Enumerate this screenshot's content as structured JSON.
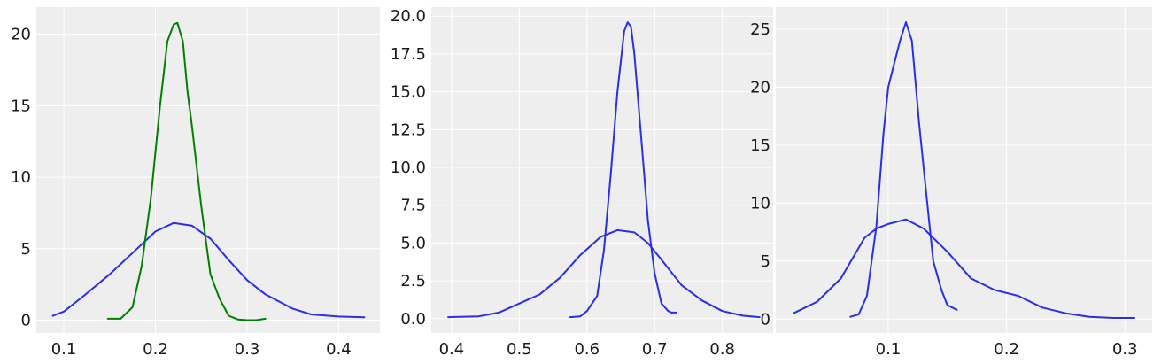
{
  "chart_data": [
    {
      "type": "line",
      "title": "",
      "xlabel": "",
      "ylabel": "",
      "xlim": [
        0.07,
        0.445
      ],
      "ylim": [
        -0.9,
        21.9
      ],
      "xticks": [
        0.1,
        0.2,
        0.3,
        0.4
      ],
      "xtick_labels": [
        "0.1",
        "0.2",
        "0.3",
        "0.4"
      ],
      "yticks": [
        0,
        5,
        10,
        15,
        20
      ],
      "ytick_labels": [
        "0",
        "5",
        "10",
        "15",
        "20"
      ],
      "grid": true,
      "series": [
        {
          "color": "#2a2eec",
          "x": [
            0.088,
            0.1,
            0.12,
            0.15,
            0.18,
            0.2,
            0.22,
            0.24,
            0.26,
            0.28,
            0.3,
            0.32,
            0.35,
            0.37,
            0.4,
            0.428
          ],
          "y": [
            0.3,
            0.6,
            1.6,
            3.2,
            5.0,
            6.2,
            6.8,
            6.6,
            5.7,
            4.2,
            2.8,
            1.8,
            0.8,
            0.4,
            0.25,
            0.2
          ]
        },
        {
          "color": "#008000",
          "x": [
            0.148,
            0.162,
            0.175,
            0.185,
            0.195,
            0.205,
            0.213,
            0.22,
            0.224,
            0.23,
            0.235,
            0.24,
            0.25,
            0.26,
            0.27,
            0.28,
            0.29,
            0.3,
            0.31,
            0.32
          ],
          "y": [
            0.1,
            0.1,
            0.9,
            3.8,
            8.5,
            15.0,
            19.5,
            20.7,
            20.8,
            19.5,
            16.0,
            13.5,
            8.0,
            3.2,
            1.5,
            0.3,
            0.05,
            0.0,
            0.0,
            0.1
          ]
        }
      ]
    },
    {
      "type": "line",
      "title": "",
      "xlabel": "",
      "ylabel": "",
      "xlim": [
        0.37,
        0.875
      ],
      "ylim": [
        -0.95,
        20.6
      ],
      "xticks": [
        0.4,
        0.5,
        0.6,
        0.7,
        0.8
      ],
      "xtick_labels": [
        "0.4",
        "0.5",
        "0.6",
        "0.7",
        "0.8"
      ],
      "yticks": [
        0.0,
        2.5,
        5.0,
        7.5,
        10.0,
        12.5,
        15.0,
        17.5,
        20.0
      ],
      "ytick_labels": [
        "0.0",
        "2.5",
        "5.0",
        "7.5",
        "10.0",
        "12.5",
        "15.0",
        "17.5",
        "20.0"
      ],
      "grid": true,
      "series": [
        {
          "color": "#2a2eec",
          "x": [
            0.395,
            0.44,
            0.47,
            0.5,
            0.53,
            0.56,
            0.59,
            0.62,
            0.645,
            0.67,
            0.69,
            0.71,
            0.74,
            0.77,
            0.8,
            0.83,
            0.855
          ],
          "y": [
            0.1,
            0.15,
            0.4,
            1.0,
            1.6,
            2.7,
            4.2,
            5.4,
            5.85,
            5.7,
            5.0,
            3.9,
            2.2,
            1.2,
            0.5,
            0.2,
            0.1
          ]
        },
        {
          "color": "#2a2eec",
          "x": [
            0.575,
            0.59,
            0.6,
            0.615,
            0.625,
            0.635,
            0.645,
            0.655,
            0.66,
            0.665,
            0.67,
            0.68,
            0.69,
            0.7,
            0.71,
            0.72,
            0.725,
            0.732
          ],
          "y": [
            0.1,
            0.15,
            0.5,
            1.5,
            4.5,
            9.5,
            15.0,
            19.0,
            19.6,
            19.3,
            17.5,
            12.0,
            6.5,
            3.0,
            1.0,
            0.5,
            0.4,
            0.4
          ]
        }
      ]
    },
    {
      "type": "line",
      "title": "",
      "xlabel": "",
      "ylabel": "",
      "xlim": [
        0.005,
        0.323
      ],
      "ylim": [
        -1.2,
        26.9
      ],
      "xticks": [
        0.1,
        0.2,
        0.3
      ],
      "xtick_labels": [
        "0.1",
        "0.2",
        "0.3"
      ],
      "yticks": [
        0,
        5,
        10,
        15,
        20,
        25
      ],
      "ytick_labels": [
        "0",
        "5",
        "10",
        "15",
        "20",
        "25"
      ],
      "grid": true,
      "series": [
        {
          "color": "#2a2eec",
          "x": [
            0.02,
            0.04,
            0.06,
            0.08,
            0.09,
            0.1,
            0.115,
            0.13,
            0.15,
            0.17,
            0.19,
            0.21,
            0.23,
            0.25,
            0.27,
            0.29,
            0.308
          ],
          "y": [
            0.5,
            1.5,
            3.5,
            7.0,
            7.8,
            8.2,
            8.6,
            7.8,
            5.8,
            3.5,
            2.5,
            2.0,
            1.0,
            0.5,
            0.2,
            0.1,
            0.1
          ]
        },
        {
          "color": "#2a2eec",
          "x": [
            0.068,
            0.075,
            0.082,
            0.09,
            0.096,
            0.1,
            0.105,
            0.11,
            0.115,
            0.12,
            0.126,
            0.132,
            0.138,
            0.145,
            0.15,
            0.158
          ],
          "y": [
            0.2,
            0.4,
            2.0,
            8.0,
            16.0,
            20.0,
            22.0,
            24.0,
            25.6,
            24.0,
            17.0,
            11.0,
            5.0,
            2.5,
            1.2,
            0.8
          ]
        }
      ]
    }
  ]
}
